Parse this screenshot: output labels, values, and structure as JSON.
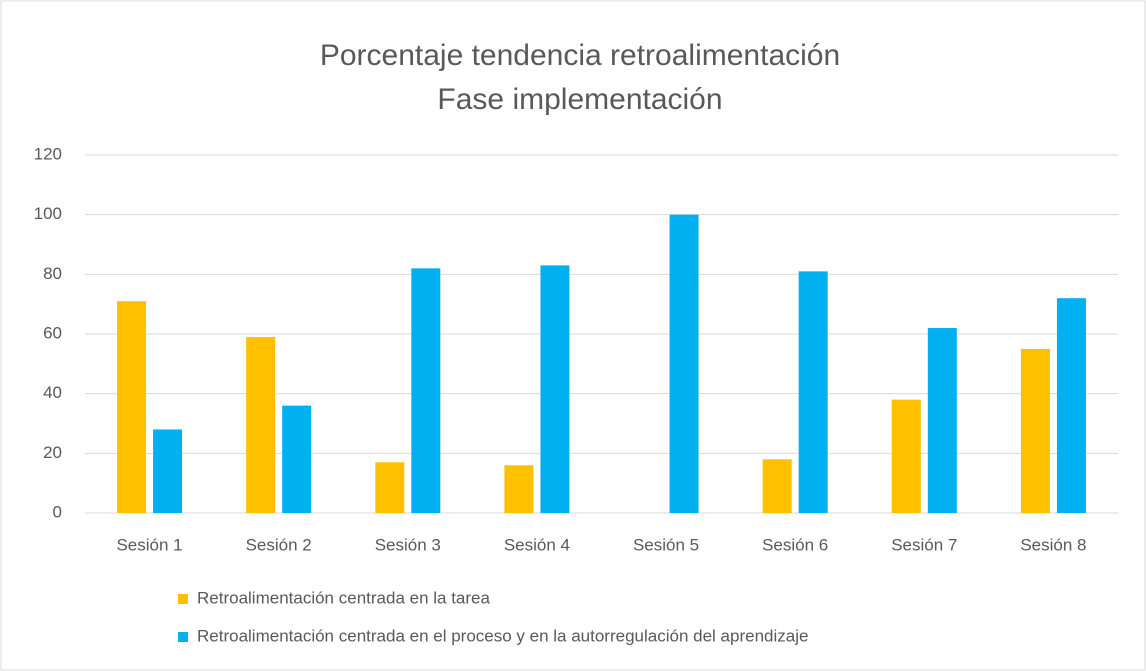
{
  "chart_data": {
    "type": "bar",
    "title": [
      "Porcentaje tendencia retroalimentación",
      "Fase implementación"
    ],
    "categories": [
      "Sesión 1",
      "Sesión 2",
      "Sesión 3",
      "Sesión 4",
      "Sesión 5",
      "Sesión 6",
      "Sesión 7",
      "Sesión 8"
    ],
    "series": [
      {
        "name": "Retroalimentación centrada en la tarea",
        "color": "#ffc000",
        "values": [
          71,
          59,
          17,
          16,
          0,
          18,
          38,
          55
        ]
      },
      {
        "name": "Retroalimentación centrada en el proceso y en la autorregulación del aprendizaje",
        "color": "#00b0f0",
        "values": [
          28,
          36,
          82,
          83,
          100,
          81,
          62,
          72
        ]
      }
    ],
    "ylim": [
      0,
      120
    ],
    "yticks": [
      0,
      20,
      40,
      60,
      80,
      100,
      120
    ],
    "grid": true,
    "legend": "bottom"
  }
}
